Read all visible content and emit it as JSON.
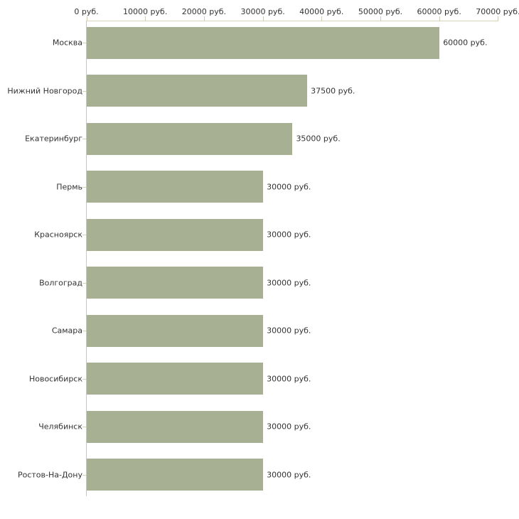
{
  "chart_data": {
    "type": "bar",
    "orientation": "horizontal",
    "title": "",
    "xlabel": "",
    "ylabel": "",
    "unit": "руб.",
    "categories": [
      "Москва",
      "Нижний Новгород",
      "Екатеринбург",
      "Пермь",
      "Красноярск",
      "Волгоград",
      "Самара",
      "Новосибирск",
      "Челябинск",
      "Ростов-На-Дону"
    ],
    "values": [
      60000,
      37500,
      35000,
      30000,
      30000,
      30000,
      30000,
      30000,
      30000,
      30000
    ],
    "value_labels": [
      "60000 руб.",
      "37500 руб.",
      "35000 руб.",
      "30000 руб.",
      "30000 руб.",
      "30000 руб.",
      "30000 руб.",
      "30000 руб.",
      "30000 руб.",
      "30000 руб."
    ],
    "x_ticks": [
      0,
      10000,
      20000,
      30000,
      40000,
      50000,
      60000,
      70000
    ],
    "x_tick_labels": [
      "0 руб.",
      "10000 руб.",
      "20000 руб.",
      "30000 руб.",
      "40000 руб.",
      "50000 руб.",
      "60000 руб.",
      "70000 руб."
    ],
    "xlim": [
      0,
      70000
    ],
    "grid": false,
    "legend": "none",
    "value_label_position": "right-of-bar",
    "bar_color": "#a8b094",
    "x_axis_color": "#d8d4b8",
    "y_axis_color": "#c8c8c8",
    "tick_color": "#cfcbb0",
    "category_tick_color": "#d4d0bc",
    "text_color": "#333333",
    "background_color": "#ffffff"
  }
}
